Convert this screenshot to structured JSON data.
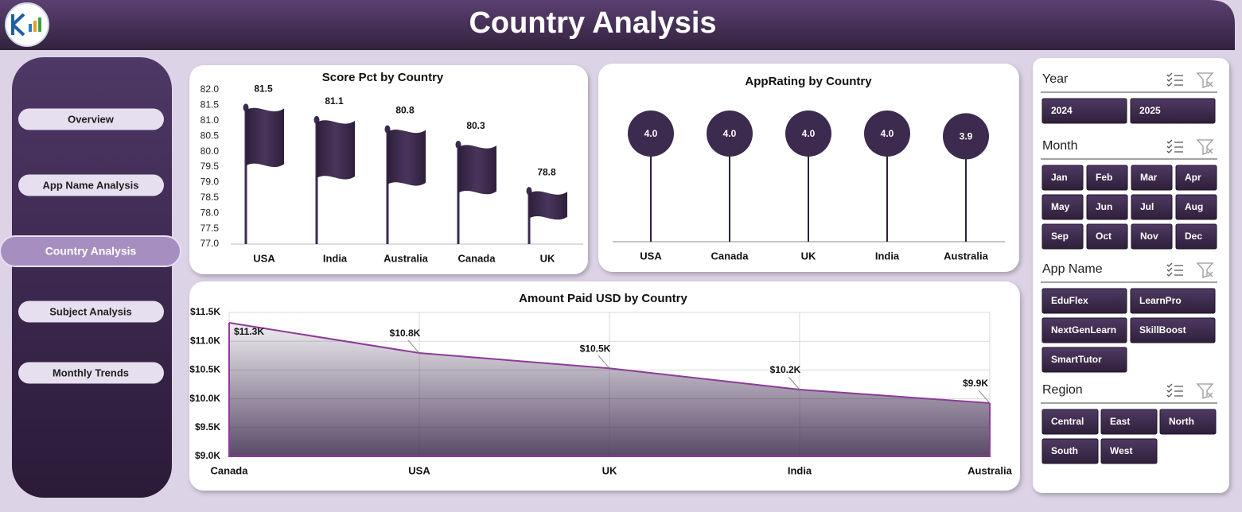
{
  "header": {
    "title": "Country Analysis"
  },
  "nav": {
    "items": [
      "Overview",
      "App Name Analysis",
      "Country Analysis",
      "Subject Analysis",
      "Monthly Trends"
    ],
    "active": 2
  },
  "chart_data": [
    {
      "type": "bar",
      "title": "Score Pct by Country",
      "categories": [
        "USA",
        "India",
        "Australia",
        "Canada",
        "UK"
      ],
      "values": [
        81.5,
        81.1,
        80.8,
        80.3,
        78.8
      ],
      "color": "#3d2a4f",
      "ylim": [
        77,
        82
      ],
      "yticks": [
        {
          "value": 77,
          "label": "77.0"
        },
        77.5,
        {
          "value": 78,
          "label": "78.0"
        },
        78.5,
        {
          "value": 79,
          "label": "79.0"
        },
        79.5,
        {
          "value": 80,
          "label": "80.0"
        },
        80.5,
        {
          "value": 81,
          "label": "81.0"
        },
        81.5,
        {
          "value": 82,
          "label": "82.0"
        }
      ]
    },
    {
      "type": "lollipop",
      "title": "AppRating by Country",
      "categories": [
        "USA",
        "Canada",
        "UK",
        "India",
        "Australia"
      ],
      "values": [
        4.0,
        4.0,
        4.0,
        4.0,
        3.9
      ],
      "value_labels": [
        "4.0",
        "4.0",
        "4.0",
        "4.0",
        "3.9"
      ],
      "color": "#3d2a4f"
    },
    {
      "type": "area",
      "title": "Amount Paid USD by Country",
      "categories": [
        "Canada",
        "USA",
        "UK",
        "India",
        "Australia"
      ],
      "values": [
        11320,
        10795,
        10530,
        10160,
        9925
      ],
      "value_labels": [
        "$11.3K",
        "$10.8K",
        "$10.5K",
        "$10.2K",
        "$9.9K"
      ],
      "color": "#8e3a9a",
      "ylim": [
        9000,
        11500
      ],
      "yticks": [
        {
          "value": 9000,
          "label": "$9.0K"
        },
        {
          "value": 9500,
          "label": "$9.5K"
        },
        {
          "value": 10000,
          "label": "$10.0K"
        },
        {
          "value": 10500,
          "label": "$10.5K"
        },
        {
          "value": 11000,
          "label": "$11.0K"
        },
        {
          "value": 11500,
          "label": "$11.5K"
        }
      ],
      "grid": true
    }
  ],
  "slicers": [
    {
      "title": "Year",
      "items": [
        "2024",
        "2025"
      ]
    },
    {
      "title": "Month",
      "items": [
        "Jan",
        "Feb",
        "Mar",
        "Apr",
        "May",
        "Jun",
        "Jul",
        "Aug",
        "Sep",
        "Oct",
        "Nov",
        "Dec"
      ]
    },
    {
      "title": "App Name",
      "items": [
        "EduFlex",
        "LearnPro",
        "NextGenLearn",
        "SkillBoost",
        "SmartTutor"
      ]
    },
    {
      "title": "Region",
      "items": [
        "Central",
        "East",
        "North",
        "South",
        "West"
      ]
    }
  ]
}
